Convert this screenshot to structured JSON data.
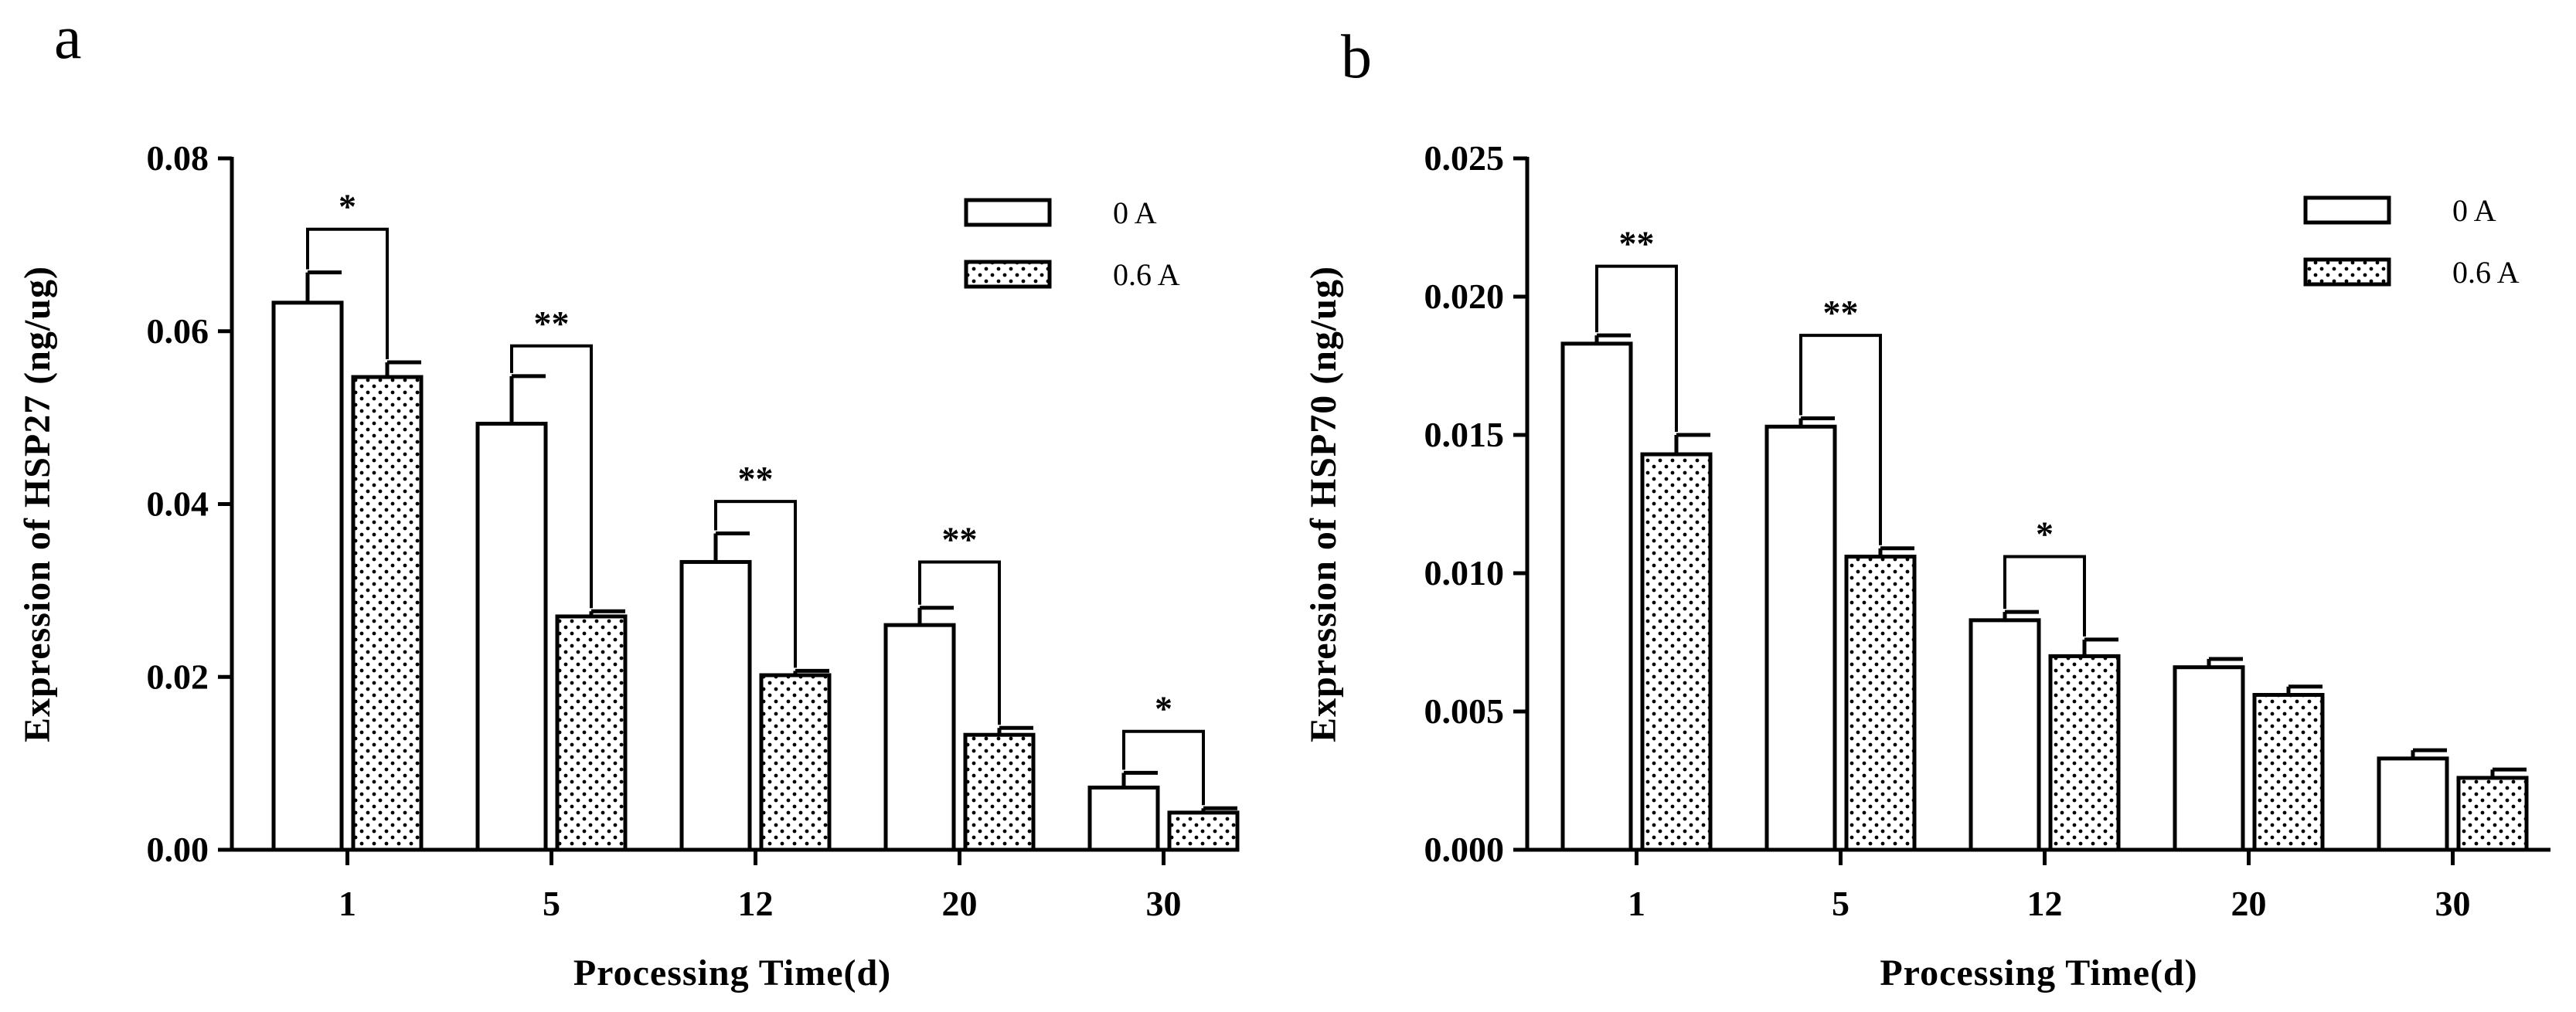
{
  "chart_data": [
    {
      "panel": "a",
      "type": "bar",
      "categories": [
        "1",
        "5",
        "12",
        "20",
        "30"
      ],
      "xlabel": "Processing Time(d)",
      "ylabel": "Expression of HSP27 (ng/ug)",
      "ylim": [
        0,
        0.08
      ],
      "yticks": [
        "0.00",
        "0.02",
        "0.04",
        "0.06",
        "0.08"
      ],
      "legend_position": "top-right",
      "series": [
        {
          "name": "0 A",
          "pattern": "open",
          "values": [
            0.0633,
            0.0493,
            0.0333,
            0.026,
            0.0072
          ],
          "errors": [
            0.0035,
            0.0055,
            0.0033,
            0.002,
            0.0017
          ]
        },
        {
          "name": "0.6 A",
          "pattern": "dotted",
          "values": [
            0.0547,
            0.027,
            0.0202,
            0.0133,
            0.0043
          ],
          "errors": [
            0.0017,
            0.0006,
            0.0005,
            0.0008,
            0.0005
          ]
        }
      ],
      "significance": [
        {
          "category": "1",
          "label": "*",
          "bracket_y": 0.0718
        },
        {
          "category": "5",
          "label": "**",
          "bracket_y": 0.0583
        },
        {
          "category": "12",
          "label": "**",
          "bracket_y": 0.0403
        },
        {
          "category": "20",
          "label": "**",
          "bracket_y": 0.0333
        },
        {
          "category": "30",
          "label": "*",
          "bracket_y": 0.0137
        }
      ]
    },
    {
      "panel": "b",
      "type": "bar",
      "categories": [
        "1",
        "5",
        "12",
        "20",
        "30"
      ],
      "xlabel": "Processing Time(d)",
      "ylabel": "Expression of HSP70 (ng/ug)",
      "ylim": [
        0,
        0.025
      ],
      "yticks": [
        "0.000",
        "0.005",
        "0.010",
        "0.015",
        "0.020",
        "0.025"
      ],
      "legend_position": "top-right",
      "series": [
        {
          "name": "0 A",
          "pattern": "open",
          "values": [
            0.0183,
            0.0153,
            0.0083,
            0.0066,
            0.0033
          ],
          "errors": [
            0.0003,
            0.0003,
            0.0003,
            0.0003,
            0.0003
          ]
        },
        {
          "name": "0.6 A",
          "pattern": "dotted",
          "values": [
            0.0143,
            0.0106,
            0.007,
            0.0056,
            0.0026
          ],
          "errors": [
            0.0007,
            0.0003,
            0.0006,
            0.0003,
            0.0003
          ]
        }
      ],
      "significance": [
        {
          "category": "1",
          "label": "**",
          "bracket_y": 0.0211
        },
        {
          "category": "5",
          "label": "**",
          "bracket_y": 0.0186
        },
        {
          "category": "12",
          "label": "*",
          "bracket_y": 0.0106
        }
      ]
    }
  ]
}
